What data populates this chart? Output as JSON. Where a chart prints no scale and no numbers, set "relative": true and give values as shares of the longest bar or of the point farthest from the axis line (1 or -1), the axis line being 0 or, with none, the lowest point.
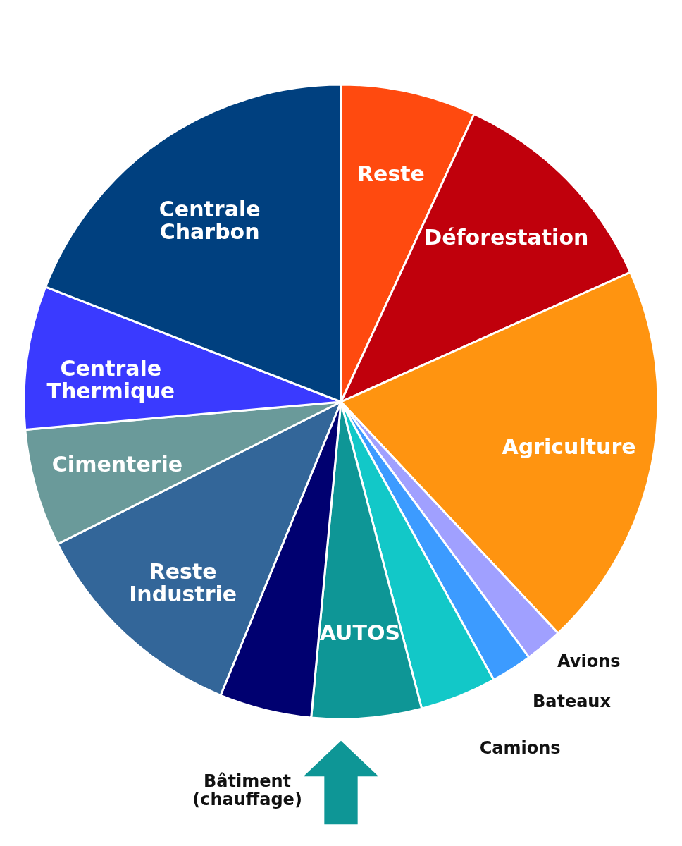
{
  "chart_data": {
    "type": "pie",
    "relative": true,
    "legend": false,
    "categories": [
      "Reste",
      "Déforestation",
      "Agriculture",
      "Avions",
      "Bateaux",
      "Camions",
      "AUTOS",
      "Bâtiment\n(chauffage)",
      "Reste\nIndustrie",
      "Cimenterie",
      "Centrale\nThermique",
      "Centrale\nCharbon"
    ],
    "values": [
      6.9,
      11.4,
      19.7,
      1.9,
      2.1,
      3.9,
      5.6,
      4.7,
      11.4,
      6.0,
      7.3,
      19.1
    ],
    "colors": [
      "#ff4a0f",
      "#c0000c",
      "#ff9410",
      "#a0a0ff",
      "#3c9bff",
      "#12c8c8",
      "#0e9696",
      "#000070",
      "#336699",
      "#6a9a9a",
      "#3a3aff",
      "#00407f"
    ]
  }
}
